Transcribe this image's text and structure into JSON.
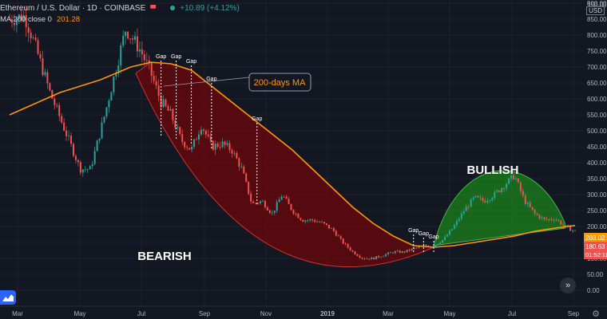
{
  "header": {
    "symbol": "Ethereum / U.S. Dollar · 1D · COINBASE",
    "change": "+10.89 (+4.12%)",
    "ma_label": "MA 200 close 0",
    "ma_value": "201.28",
    "currency": "USD"
  },
  "annotations": {
    "ma_callout": "200-days MA",
    "bearish": "BEARISH",
    "bullish": "BULLISH",
    "gap": "Gap"
  },
  "price_tags": {
    "ma": "203.02",
    "last": "180.63",
    "countdown": "01:52:11"
  },
  "colors": {
    "background": "#131722",
    "up": "#26a69a",
    "down": "#ef5350",
    "ma": "#ff9800",
    "bearish_fill": "#8b0000",
    "bullish_fill": "#1b8a1b"
  },
  "chart_data": {
    "type": "candlestick",
    "x_ticks": [
      "Mar",
      "May",
      "Jul",
      "Sep",
      "Nov",
      "2019",
      "Mar",
      "May",
      "Jul",
      "Sep"
    ],
    "y_ticks": [
      0,
      50,
      100,
      150,
      200,
      250,
      300,
      350,
      400,
      450,
      500,
      550,
      600,
      650,
      700,
      750,
      800,
      850,
      900,
      950
    ],
    "ylim": [
      0,
      950
    ],
    "y_unit": "",
    "price_path": [
      [
        0,
        850
      ],
      [
        3,
        860
      ],
      [
        5,
        770
      ],
      [
        8,
        620
      ],
      [
        11,
        500
      ],
      [
        14,
        380
      ],
      [
        16,
        380
      ],
      [
        19,
        560
      ],
      [
        21,
        690
      ],
      [
        23,
        820
      ],
      [
        26,
        750
      ],
      [
        28,
        680
      ],
      [
        30,
        590
      ],
      [
        32,
        550
      ],
      [
        34,
        470
      ],
      [
        36,
        440
      ],
      [
        38,
        520
      ],
      [
        40,
        450
      ],
      [
        42,
        460
      ],
      [
        44,
        440
      ],
      [
        46,
        380
      ],
      [
        48,
        270
      ],
      [
        50,
        280
      ],
      [
        52,
        240
      ],
      [
        54,
        300
      ],
      [
        56,
        250
      ],
      [
        58,
        220
      ],
      [
        60,
        220
      ],
      [
        62,
        210
      ],
      [
        64,
        190
      ],
      [
        66,
        150
      ],
      [
        68,
        120
      ],
      [
        70,
        100
      ],
      [
        72,
        100
      ],
      [
        74,
        110
      ],
      [
        76,
        120
      ],
      [
        78,
        120
      ],
      [
        80,
        130
      ],
      [
        82,
        140
      ],
      [
        84,
        140
      ],
      [
        86,
        160
      ],
      [
        88,
        200
      ],
      [
        90,
        250
      ],
      [
        92,
        290
      ],
      [
        94,
        280
      ],
      [
        96,
        300
      ],
      [
        98,
        330
      ],
      [
        100,
        360
      ],
      [
        102,
        280
      ],
      [
        104,
        240
      ],
      [
        106,
        220
      ],
      [
        108,
        225
      ],
      [
        110,
        200
      ],
      [
        112,
        185
      ]
    ],
    "ma_200": [
      [
        0,
        550
      ],
      [
        10,
        620
      ],
      [
        18,
        660
      ],
      [
        24,
        700
      ],
      [
        28,
        715
      ],
      [
        32,
        710
      ],
      [
        36,
        690
      ],
      [
        40,
        640
      ],
      [
        44,
        590
      ],
      [
        48,
        540
      ],
      [
        52,
        490
      ],
      [
        56,
        440
      ],
      [
        60,
        380
      ],
      [
        64,
        320
      ],
      [
        68,
        260
      ],
      [
        72,
        210
      ],
      [
        76,
        170
      ],
      [
        80,
        140
      ],
      [
        84,
        135
      ],
      [
        88,
        140
      ],
      [
        92,
        150
      ],
      [
        96,
        160
      ],
      [
        100,
        170
      ],
      [
        104,
        185
      ],
      [
        108,
        195
      ],
      [
        112,
        203
      ]
    ],
    "bearish_arc": {
      "start": [
        25,
        680
      ],
      "bottom": [
        60,
        80
      ],
      "end": [
        84,
        135
      ]
    },
    "bullish_dome": {
      "start": [
        84,
        140
      ],
      "peak": [
        98,
        390
      ],
      "end": [
        110,
        210
      ]
    },
    "gap_markers": [
      {
        "x": 30,
        "top": 720,
        "bottom": 480
      },
      {
        "x": 33,
        "top": 720,
        "bottom": 470
      },
      {
        "x": 36,
        "top": 705,
        "bottom": 460
      },
      {
        "x": 40,
        "top": 650,
        "bottom": 440
      },
      {
        "x": 49,
        "top": 525,
        "bottom": 270
      },
      {
        "x": 80,
        "top": 175,
        "bottom": 120
      },
      {
        "x": 82,
        "top": 165,
        "bottom": 115
      },
      {
        "x": 84,
        "top": 155,
        "bottom": 115
      }
    ]
  }
}
